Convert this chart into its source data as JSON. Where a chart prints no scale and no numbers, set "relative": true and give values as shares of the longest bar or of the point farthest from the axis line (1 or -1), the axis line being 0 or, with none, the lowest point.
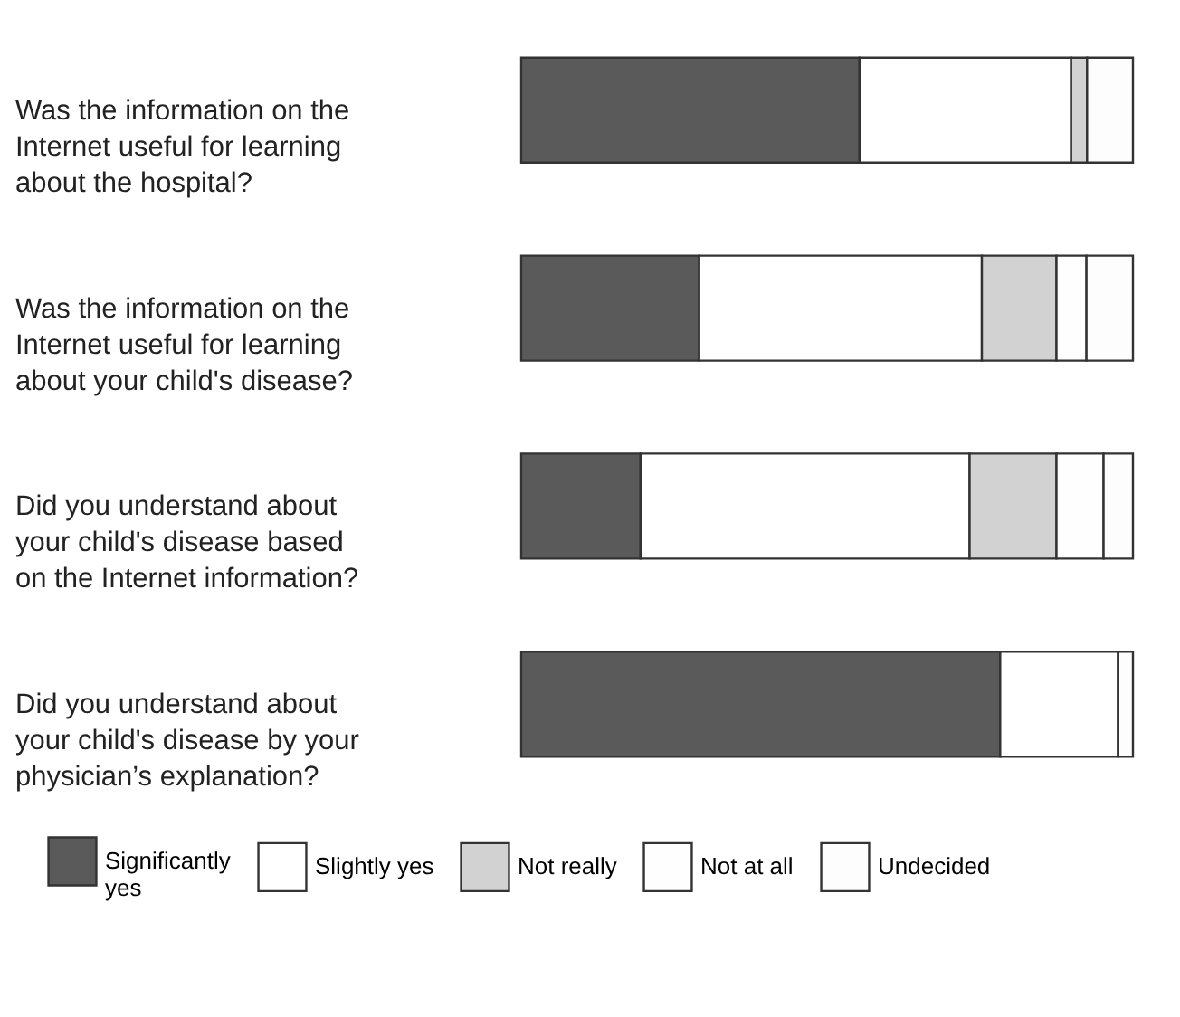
{
  "chart_data": {
    "type": "bar",
    "orientation": "horizontal",
    "stacked": true,
    "relative": true,
    "legend": "bottom",
    "categories": [
      "Was the information on the Internet useful for learning about the hospital?",
      "Was the information on the Internet useful for learning about your child's disease?",
      "Did you understand about your child's disease based on the Internet information?",
      "Did you understand about your child's disease by your physician’s explanation?"
    ],
    "series": [
      {
        "name": "Significantly yes",
        "color": "#5a5a5a",
        "values": [
          0.553,
          0.291,
          0.195,
          0.783
        ]
      },
      {
        "name": "Slightly yes",
        "color": "#ffffff",
        "values": [
          0.346,
          0.462,
          0.538,
          0.193
        ]
      },
      {
        "name": "Not really",
        "color": "#d2d2d2",
        "values": [
          0.026,
          0.122,
          0.142,
          0
        ]
      },
      {
        "name": "Not at all",
        "color": "#fefefe",
        "values": [
          0,
          0.049,
          0.077,
          0
        ]
      },
      {
        "name": "Undecided",
        "color": "#fdfdfd",
        "values": [
          0.075,
          0.076,
          0.048,
          0.024
        ]
      }
    ]
  }
}
